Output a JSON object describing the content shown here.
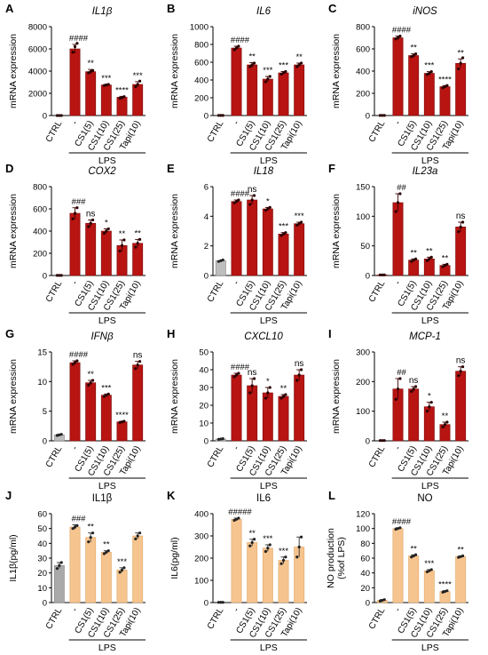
{
  "chart_data": [
    {
      "panel": "A",
      "type": "bar",
      "title": "IL1β",
      "title_italic": true,
      "ylabel": "mRNA expression",
      "ylim": [
        0,
        8000
      ],
      "yticks": [
        0,
        2000,
        4000,
        6000,
        8000
      ],
      "categories": [
        "CTRL",
        "-",
        "CS1(5)",
        "CS1(10)",
        "CS1(25)",
        "Tapi(10)"
      ],
      "group_label": "LPS",
      "values": [
        1,
        6000,
        3950,
        2750,
        1650,
        2800
      ],
      "errors": [
        0,
        400,
        200,
        60,
        80,
        250
      ],
      "points": [
        [
          1,
          1,
          1
        ],
        [
          5700,
          6200,
          6500
        ],
        [
          3850,
          3950,
          4050
        ],
        [
          2700,
          2750,
          2800
        ],
        [
          1550,
          1600,
          1700
        ],
        [
          2600,
          2800,
          3100
        ]
      ],
      "significance": [
        "",
        "####",
        "**",
        "***",
        "****",
        "***"
      ],
      "style": "red"
    },
    {
      "panel": "B",
      "type": "bar",
      "title": "IL6",
      "title_italic": true,
      "ylabel": "mRNA expression",
      "ylim": [
        0,
        1000
      ],
      "yticks": [
        0,
        200,
        400,
        600,
        800,
        1000
      ],
      "categories": [
        "CTRL",
        "-",
        "CS1(5)",
        "CS1(10)",
        "CS1(25)",
        "Tapi(10)"
      ],
      "group_label": "LPS",
      "values": [
        1,
        760,
        570,
        410,
        480,
        570
      ],
      "errors": [
        0,
        20,
        25,
        30,
        15,
        20
      ],
      "points": [
        [
          1,
          1,
          1
        ],
        [
          740,
          760,
          780
        ],
        [
          550,
          570,
          590
        ],
        [
          380,
          410,
          440
        ],
        [
          465,
          480,
          495
        ],
        [
          550,
          570,
          590
        ]
      ],
      "significance": [
        "",
        "####",
        "**",
        "***",
        "***",
        "**"
      ],
      "style": "red"
    },
    {
      "panel": "C",
      "type": "bar",
      "title": "iNOS",
      "title_italic": true,
      "ylabel": "mRNA expression",
      "ylim": [
        0,
        800
      ],
      "yticks": [
        0,
        200,
        400,
        600,
        800
      ],
      "categories": [
        "CTRL",
        "-",
        "CS1(5)",
        "CS1(10)",
        "CS1(25)",
        "Tapi(10)"
      ],
      "group_label": "LPS",
      "values": [
        1,
        700,
        540,
        380,
        260,
        470
      ],
      "errors": [
        0,
        15,
        15,
        15,
        10,
        40
      ],
      "points": [
        [
          1,
          1,
          1
        ],
        [
          690,
          700,
          715
        ],
        [
          530,
          540,
          555
        ],
        [
          370,
          380,
          395
        ],
        [
          250,
          260,
          270
        ],
        [
          420,
          470,
          520
        ]
      ],
      "significance": [
        "",
        "####",
        "**",
        "***",
        "****",
        "**"
      ],
      "style": "red"
    },
    {
      "panel": "D",
      "type": "bar",
      "title": "COX2",
      "title_italic": true,
      "ylabel": "mRNA expression",
      "ylim": [
        0,
        800
      ],
      "yticks": [
        0,
        200,
        400,
        600,
        800
      ],
      "categories": [
        "CTRL",
        "-",
        "CS1(5)",
        "CS1(10)",
        "CS1(25)",
        "Tapi(10)"
      ],
      "group_label": "LPS",
      "values": [
        1,
        560,
        470,
        400,
        270,
        290
      ],
      "errors": [
        0,
        50,
        30,
        20,
        50,
        35
      ],
      "points": [
        [
          1,
          1,
          1
        ],
        [
          510,
          560,
          610
        ],
        [
          440,
          470,
          500
        ],
        [
          380,
          400,
          420
        ],
        [
          220,
          270,
          320
        ],
        [
          255,
          290,
          325
        ]
      ],
      "significance": [
        "",
        "###",
        "ns",
        "*",
        "**",
        "**"
      ],
      "style": "red"
    },
    {
      "panel": "E",
      "type": "bar",
      "title": "IL18",
      "title_italic": true,
      "ylabel": "mRNA expression",
      "ylim": [
        0,
        6
      ],
      "yticks": [
        0,
        2,
        4,
        6
      ],
      "categories": [
        "CTRL",
        "-",
        "CS1(5)",
        "CS1(10)",
        "CS1(25)",
        "Tapi(10)"
      ],
      "group_label": "LPS",
      "values": [
        1,
        5,
        5.1,
        4.5,
        2.8,
        3.5
      ],
      "errors": [
        0,
        0.1,
        0.3,
        0.1,
        0.1,
        0.1
      ],
      "points": [
        [
          0.95,
          1,
          1.05
        ],
        [
          4.9,
          5,
          5.1
        ],
        [
          4.8,
          5.1,
          5.4
        ],
        [
          4.4,
          4.5,
          4.6
        ],
        [
          2.7,
          2.8,
          2.9
        ],
        [
          3.4,
          3.5,
          3.6
        ]
      ],
      "significance": [
        "",
        "####",
        "ns",
        "*",
        "***",
        "***"
      ],
      "style": "red_gray"
    },
    {
      "panel": "F",
      "type": "bar",
      "title": "IL23a",
      "title_italic": true,
      "ylabel": "mRNA expression",
      "ylim": [
        0,
        150
      ],
      "yticks": [
        0,
        50,
        100,
        150
      ],
      "categories": [
        "CTRL",
        "-",
        "CS1(5)",
        "CS1(10)",
        "CS1(25)",
        "Tapi(10)"
      ],
      "group_label": "LPS",
      "values": [
        1,
        123,
        26,
        28,
        17,
        82
      ],
      "errors": [
        0,
        15,
        2,
        3,
        2,
        8
      ],
      "points": [
        [
          1,
          1,
          1
        ],
        [
          108,
          123,
          138
        ],
        [
          24,
          26,
          28
        ],
        [
          25,
          28,
          31
        ],
        [
          15,
          17,
          19
        ],
        [
          74,
          82,
          90
        ]
      ],
      "significance": [
        "",
        "##",
        "**",
        "**",
        "**",
        "ns"
      ],
      "style": "red"
    },
    {
      "panel": "G",
      "type": "bar",
      "title": "IFNβ",
      "title_italic": true,
      "ylabel": "mRNA expression",
      "ylim": [
        0,
        15
      ],
      "yticks": [
        0,
        5,
        10,
        15
      ],
      "categories": [
        "CTRL",
        "-",
        "CS1(5)",
        "CS1(10)",
        "CS1(25)",
        "Tapi(10)"
      ],
      "group_label": "LPS",
      "values": [
        1,
        13.2,
        9.8,
        7.7,
        3.2,
        12.8
      ],
      "errors": [
        0.1,
        0.3,
        0.4,
        0.2,
        0.1,
        0.6
      ],
      "points": [
        [
          0.9,
          1,
          1.1
        ],
        [
          12.9,
          13.2,
          13.5
        ],
        [
          9.4,
          9.8,
          10.2
        ],
        [
          7.5,
          7.7,
          7.9
        ],
        [
          3.1,
          3.2,
          3.3
        ],
        [
          12.2,
          12.8,
          13.4
        ]
      ],
      "significance": [
        "",
        "####",
        "**",
        "***",
        "****",
        "ns"
      ],
      "style": "red_gray"
    },
    {
      "panel": "H",
      "type": "bar",
      "title": "CXCL10",
      "title_italic": true,
      "ylabel": "mRNA expression",
      "ylim": [
        0,
        50
      ],
      "yticks": [
        0,
        10,
        20,
        30,
        40,
        50
      ],
      "categories": [
        "CTRL",
        "-",
        "CS1(5)",
        "CS1(10)",
        "CS1(25)",
        "Tapi(10)"
      ],
      "group_label": "LPS",
      "values": [
        1,
        37,
        31,
        27,
        25,
        37
      ],
      "errors": [
        0.2,
        1,
        4,
        3,
        1,
        3
      ],
      "points": [
        [
          0.8,
          1,
          1.2
        ],
        [
          36,
          37,
          38
        ],
        [
          27,
          31,
          35
        ],
        [
          24,
          27,
          30
        ],
        [
          24,
          25,
          26
        ],
        [
          34,
          37,
          40
        ]
      ],
      "significance": [
        "",
        "####",
        "ns",
        "*",
        "**",
        "ns"
      ],
      "style": "red_gray"
    },
    {
      "panel": "I",
      "type": "bar",
      "title": "MCP-1",
      "title_italic": true,
      "ylabel": "mRNA expression",
      "ylim": [
        0,
        300
      ],
      "yticks": [
        0,
        100,
        200,
        300
      ],
      "categories": [
        "CTRL",
        "-",
        "CS1(5)",
        "CS1(10)",
        "CS1(25)",
        "Tapi(10)"
      ],
      "group_label": "LPS",
      "values": [
        1,
        175,
        175,
        115,
        55,
        235
      ],
      "errors": [
        0,
        35,
        8,
        15,
        8,
        15
      ],
      "points": [
        [
          1,
          1,
          1
        ],
        [
          140,
          175,
          210
        ],
        [
          167,
          175,
          183
        ],
        [
          100,
          115,
          130
        ],
        [
          47,
          55,
          63
        ],
        [
          220,
          235,
          250
        ]
      ],
      "significance": [
        "",
        "##",
        "ns",
        "*",
        "**",
        "ns"
      ],
      "style": "red"
    },
    {
      "panel": "J",
      "type": "bar",
      "title": "IL1β",
      "title_italic": false,
      "ylabel": "IL1β(pg/ml)",
      "ylim": [
        0,
        60
      ],
      "yticks": [
        0,
        10,
        20,
        30,
        40,
        50,
        60
      ],
      "categories": [
        "CTRL",
        "-",
        "CS1(5)",
        "CS1(10)",
        "CS1(25)",
        "Tapi(10)"
      ],
      "group_label": "LPS",
      "values": [
        25,
        51,
        44,
        34,
        22,
        45
      ],
      "errors": [
        2,
        1.5,
        3,
        1,
        1.5,
        2
      ],
      "points": [
        [
          23,
          25,
          27
        ],
        [
          50,
          51,
          52
        ],
        [
          41,
          44,
          47
        ],
        [
          33,
          34,
          35
        ],
        [
          20.5,
          22,
          23.5
        ],
        [
          43,
          45,
          47
        ]
      ],
      "significance": [
        "",
        "###",
        "**",
        "**",
        "***",
        ""
      ],
      "style": "peach_gray"
    },
    {
      "panel": "K",
      "type": "bar",
      "title": "IL6",
      "title_italic": false,
      "ylabel": "IL6(pg/ml)",
      "ylim": [
        0,
        400
      ],
      "yticks": [
        0,
        100,
        200,
        300,
        400
      ],
      "categories": [
        "CTRL",
        "-",
        "CS1(5)",
        "CS1(10)",
        "CS1(25)",
        "Tapi(10)"
      ],
      "group_label": "LPS",
      "values": [
        1,
        375,
        270,
        245,
        190,
        250
      ],
      "errors": [
        0,
        5,
        15,
        15,
        15,
        45
      ],
      "points": [
        [
          1,
          1,
          1
        ],
        [
          370,
          375,
          380
        ],
        [
          255,
          270,
          285
        ],
        [
          230,
          245,
          260
        ],
        [
          175,
          190,
          205
        ],
        [
          205,
          250,
          295
        ]
      ],
      "significance": [
        "",
        "#####",
        "**",
        "***",
        "***",
        ""
      ],
      "style": "peach"
    },
    {
      "panel": "L",
      "type": "bar",
      "title": "NO",
      "title_italic": false,
      "ylabel": "NO production\n(%of LPS)",
      "ylim": [
        0,
        120
      ],
      "yticks": [
        0,
        20,
        40,
        60,
        80,
        100,
        120
      ],
      "categories": [
        "CTRL",
        "-",
        "CS1(5)",
        "CS1(10)",
        "CS1(25)",
        "Tapi(10)"
      ],
      "group_label": "LPS",
      "values": [
        3,
        100,
        63,
        43,
        15,
        62
      ],
      "errors": [
        1,
        1,
        1.5,
        1.5,
        1,
        1
      ],
      "points": [
        [
          2,
          3,
          4
        ],
        [
          99,
          100,
          101
        ],
        [
          61.5,
          63,
          64.5
        ],
        [
          41.5,
          43,
          44.5
        ],
        [
          14,
          15,
          16
        ],
        [
          61,
          62,
          63
        ]
      ],
      "significance": [
        "",
        "####",
        "**",
        "***",
        "****",
        "**"
      ],
      "style": "peach"
    }
  ]
}
